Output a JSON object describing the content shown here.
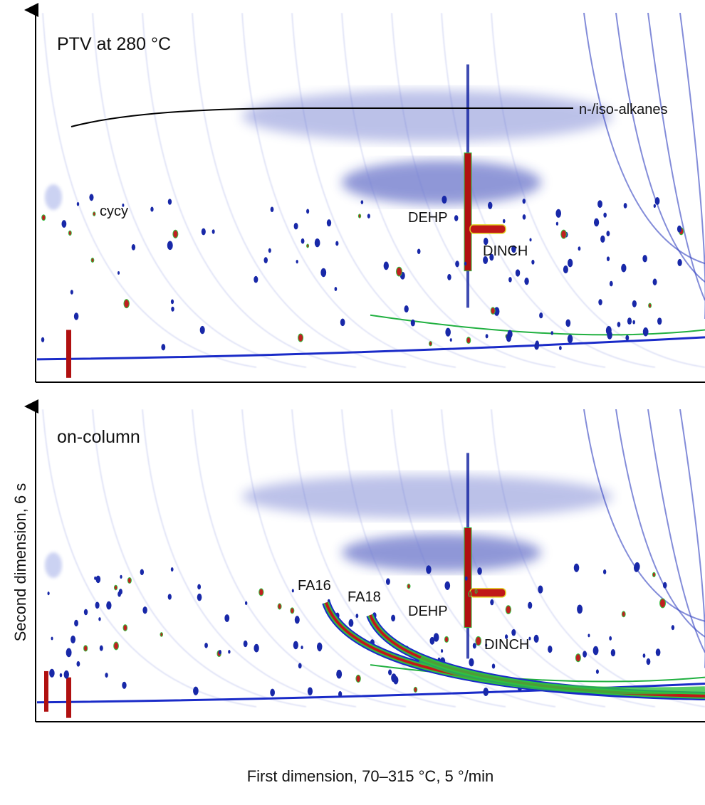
{
  "panels": [
    {
      "title": "PTV at 280 °C",
      "annotations": [
        "n-/iso-alkanes",
        "cycy",
        "DEHP",
        "DINCH"
      ]
    },
    {
      "title": "on-column",
      "annotations": [
        "FA16",
        "FA18",
        "DEHP",
        "DINCH"
      ]
    }
  ],
  "y_label": "Second dimension, 6 s",
  "x_label": "First dimension, 70–315 °C, 5 °/min"
}
